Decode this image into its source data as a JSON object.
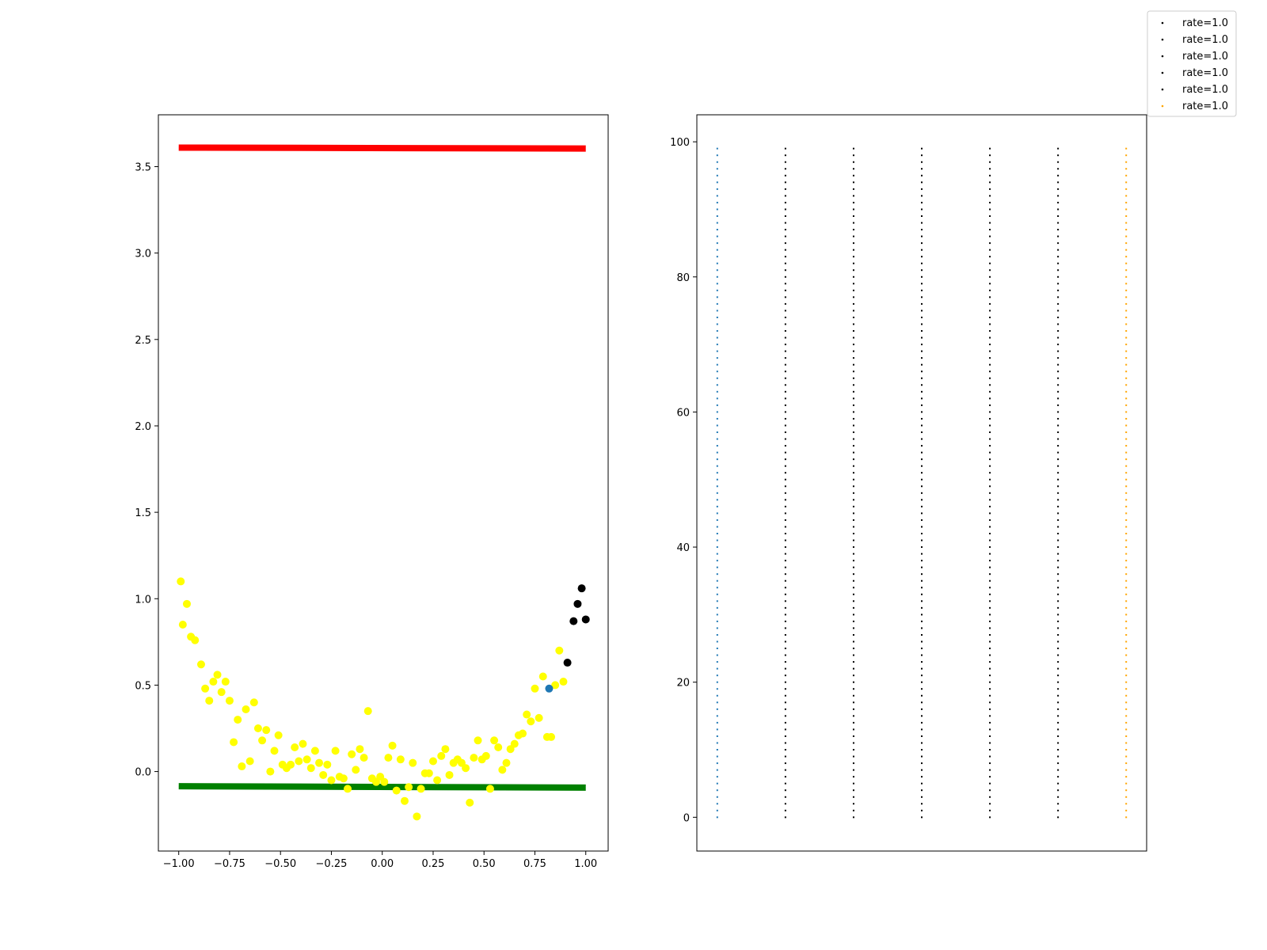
{
  "chart_data": [
    {
      "type": "scatter",
      "xlim": [
        -1.1,
        1.11
      ],
      "ylim": [
        -0.46,
        3.8
      ],
      "xticks": [
        -1.0,
        -0.75,
        -0.5,
        -0.25,
        0.0,
        0.25,
        0.5,
        0.75,
        1.0
      ],
      "xtick_labels": [
        "−1.00",
        "−0.75",
        "−0.50",
        "−0.25",
        "0.00",
        "0.25",
        "0.50",
        "0.75",
        "1.00"
      ],
      "yticks": [
        0.0,
        0.5,
        1.0,
        1.5,
        2.0,
        2.5,
        3.0,
        3.5
      ],
      "ytick_labels": [
        "0.0",
        "0.5",
        "1.0",
        "1.5",
        "2.0",
        "2.5",
        "3.0",
        "3.5"
      ],
      "lines": [
        {
          "color": "#ff0000",
          "x": [
            -1.0,
            1.0
          ],
          "y": [
            3.61,
            3.605
          ]
        },
        {
          "color": "#008000",
          "x": [
            -1.0,
            1.0
          ],
          "y": [
            -0.085,
            -0.093
          ]
        }
      ],
      "series": [
        {
          "color": "#ffff00",
          "x": [
            -0.99,
            -0.98,
            -0.96,
            -0.94,
            -0.92,
            -0.89,
            -0.87,
            -0.85,
            -0.83,
            -0.81,
            -0.79,
            -0.77,
            -0.75,
            -0.73,
            -0.71,
            -0.69,
            -0.67,
            -0.65,
            -0.63,
            -0.61,
            -0.59,
            -0.57,
            -0.55,
            -0.53,
            -0.51,
            -0.49,
            -0.47,
            -0.45,
            -0.43,
            -0.41,
            -0.39,
            -0.37,
            -0.35,
            -0.33,
            -0.31,
            -0.29,
            -0.27,
            -0.25,
            -0.23,
            -0.21,
            -0.19,
            -0.17,
            -0.15,
            -0.13,
            -0.11,
            -0.09,
            -0.07,
            -0.05,
            -0.03,
            -0.01,
            0.01,
            0.03,
            0.05,
            0.07,
            0.09,
            0.11,
            0.13,
            0.15,
            0.17,
            0.19,
            0.21,
            0.23,
            0.25,
            0.27,
            0.29,
            0.31,
            0.33,
            0.35,
            0.37,
            0.39,
            0.41,
            0.43,
            0.45,
            0.47,
            0.49,
            0.51,
            0.53,
            0.55,
            0.57,
            0.59,
            0.61,
            0.63,
            0.65,
            0.67,
            0.69,
            0.71,
            0.73,
            0.75,
            0.77,
            0.79,
            0.81,
            0.83,
            0.85,
            0.87,
            0.89
          ],
          "y": [
            1.1,
            0.85,
            0.97,
            0.78,
            0.76,
            0.62,
            0.48,
            0.41,
            0.52,
            0.56,
            0.46,
            0.52,
            0.41,
            0.17,
            0.3,
            0.03,
            0.36,
            0.06,
            0.4,
            0.25,
            0.18,
            0.24,
            0.0,
            0.12,
            0.21,
            0.04,
            0.02,
            0.04,
            0.14,
            0.06,
            0.16,
            0.07,
            0.02,
            0.12,
            0.05,
            -0.02,
            0.04,
            -0.05,
            0.12,
            -0.03,
            -0.04,
            -0.1,
            0.1,
            0.01,
            0.13,
            0.08,
            0.35,
            -0.04,
            -0.06,
            -0.03,
            -0.06,
            0.08,
            0.15,
            -0.11,
            0.07,
            -0.17,
            -0.09,
            0.05,
            -0.26,
            -0.1,
            -0.01,
            -0.01,
            0.06,
            -0.05,
            0.09,
            0.13,
            -0.02,
            0.05,
            0.07,
            0.05,
            0.02,
            -0.18,
            0.08,
            0.18,
            0.07,
            0.09,
            -0.1,
            0.18,
            0.14,
            0.01,
            0.05,
            0.13,
            0.16,
            0.21,
            0.22,
            0.33,
            0.29,
            0.48,
            0.31,
            0.55,
            0.2,
            0.2,
            0.5,
            0.7,
            0.52
          ]
        },
        {
          "color": "#000000",
          "x": [
            0.91,
            0.94,
            0.96,
            0.98,
            1.0
          ],
          "y": [
            0.63,
            0.87,
            0.97,
            1.06,
            0.88
          ]
        },
        {
          "color": "#1f77b4",
          "x": [
            0.82
          ],
          "y": [
            0.48
          ]
        }
      ]
    },
    {
      "type": "scatter",
      "xlim": [
        -0.3,
        6.3
      ],
      "ylim": [
        -5,
        104
      ],
      "yticks": [
        0,
        20,
        40,
        60,
        80,
        100
      ],
      "ytick_labels": [
        "0",
        "20",
        "40",
        "60",
        "80",
        "100"
      ],
      "columns": [
        {
          "x": 0,
          "color": "#1f77b4"
        },
        {
          "x": 1,
          "color": "#000000"
        },
        {
          "x": 2,
          "color": "#000000"
        },
        {
          "x": 3,
          "color": "#000000"
        },
        {
          "x": 4,
          "color": "#000000"
        },
        {
          "x": 5,
          "color": "#000000"
        },
        {
          "x": 6,
          "color": "#ffa500"
        }
      ],
      "column_y_range": [
        0,
        99
      ],
      "legend": {
        "placement": "upper-right-outside",
        "entries": [
          {
            "label": "rate=1.0",
            "color": "#000000"
          },
          {
            "label": "rate=1.0",
            "color": "#000000"
          },
          {
            "label": "rate=1.0",
            "color": "#000000"
          },
          {
            "label": "rate=1.0",
            "color": "#000000"
          },
          {
            "label": "rate=1.0",
            "color": "#000000"
          },
          {
            "label": "rate=1.0",
            "color": "#ffa500"
          }
        ]
      }
    }
  ]
}
